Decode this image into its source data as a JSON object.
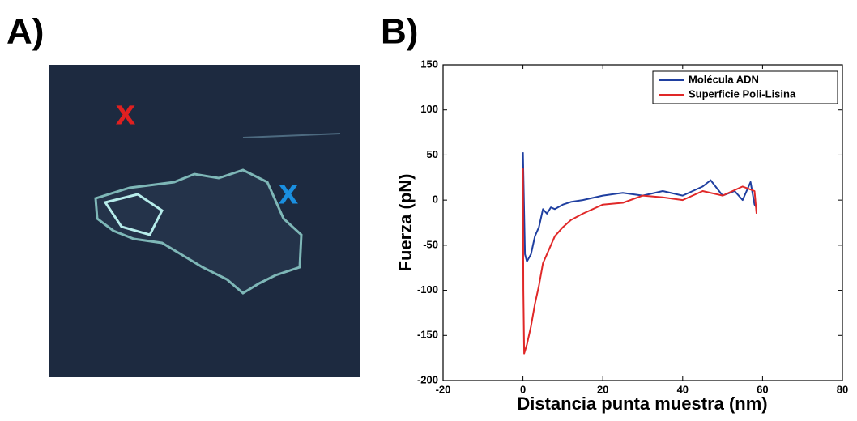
{
  "panels": {
    "labels": [
      "A)",
      "B)"
    ]
  },
  "image": {
    "markers": [
      {
        "text": "x",
        "color": "#e02020"
      },
      {
        "text": "x",
        "color": "#1a8fe0"
      }
    ]
  },
  "chart_data": {
    "type": "line",
    "xlabel": "Distancia punta muestra (nm)",
    "ylabel": "Fuerza (pN)",
    "xlim": [
      -20,
      80
    ],
    "xticks": [
      -20,
      0,
      20,
      40,
      60,
      80
    ],
    "ylim": [
      -200,
      150
    ],
    "yticks": [
      -200,
      -150,
      -100,
      -50,
      0,
      50,
      100,
      150
    ],
    "legend": "upper right",
    "series": [
      {
        "name": "Molécula ADN",
        "color": "#1f3fa0",
        "x": [
          0,
          0.5,
          1,
          2,
          3,
          4,
          5,
          6,
          7,
          8,
          10,
          12,
          15,
          20,
          25,
          30,
          35,
          40,
          45,
          47,
          50,
          53,
          55,
          57,
          58,
          58.5
        ],
        "values": [
          53,
          -60,
          -68,
          -60,
          -40,
          -30,
          -10,
          -15,
          -8,
          -10,
          -5,
          -2,
          0,
          5,
          8,
          5,
          10,
          5,
          15,
          22,
          5,
          10,
          0,
          20,
          -5,
          -8
        ]
      },
      {
        "name": "Superficie Poli-Lisina",
        "color": "#e02828",
        "x": [
          0,
          0.1,
          0.3,
          1,
          2,
          3,
          4,
          5,
          6,
          8,
          10,
          12,
          15,
          20,
          25,
          30,
          35,
          40,
          45,
          50,
          55,
          58,
          58.5
        ],
        "values": [
          35,
          -100,
          -170,
          -160,
          -140,
          -115,
          -95,
          -70,
          -60,
          -40,
          -30,
          -22,
          -15,
          -5,
          -3,
          5,
          3,
          0,
          10,
          5,
          15,
          10,
          -15
        ]
      }
    ]
  }
}
